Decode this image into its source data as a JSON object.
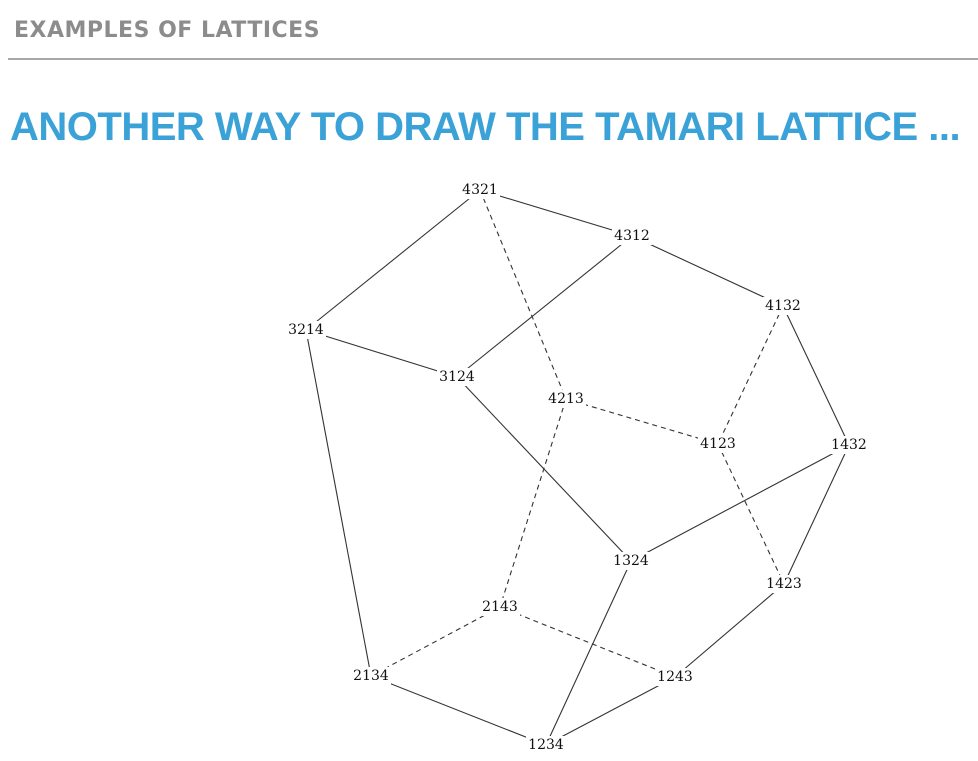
{
  "header": {
    "section_title": "EXAMPLES OF LATTICES"
  },
  "slide": {
    "title": "ANOTHER WAY TO DRAW THE TAMARI LATTICE ...",
    "title_color": "#3ba2d8",
    "header_color": "#8c8c8c",
    "rule_color": "#a8a8a8"
  },
  "diagram": {
    "nodes": [
      "4321",
      "4312",
      "4132",
      "3214",
      "3124",
      "4213",
      "4123",
      "1432",
      "1324",
      "1423",
      "2143",
      "2134",
      "1243",
      "1234"
    ],
    "edges": [
      {
        "from": "4321",
        "to": "4312",
        "style": "solid"
      },
      {
        "from": "4321",
        "to": "3214",
        "style": "solid"
      },
      {
        "from": "4321",
        "to": "4213",
        "style": "dashed"
      },
      {
        "from": "4312",
        "to": "4132",
        "style": "solid"
      },
      {
        "from": "4312",
        "to": "3124",
        "style": "solid"
      },
      {
        "from": "3214",
        "to": "3124",
        "style": "solid"
      },
      {
        "from": "3214",
        "to": "2134",
        "style": "solid"
      },
      {
        "from": "4132",
        "to": "1432",
        "style": "solid"
      },
      {
        "from": "4132",
        "to": "4123",
        "style": "dashed"
      },
      {
        "from": "3124",
        "to": "1324",
        "style": "solid"
      },
      {
        "from": "4213",
        "to": "4123",
        "style": "dashed"
      },
      {
        "from": "4213",
        "to": "2143",
        "style": "dashed"
      },
      {
        "from": "4123",
        "to": "1423",
        "style": "dashed"
      },
      {
        "from": "1432",
        "to": "1324",
        "style": "solid"
      },
      {
        "from": "1432",
        "to": "1423",
        "style": "solid"
      },
      {
        "from": "1324",
        "to": "1234",
        "style": "solid"
      },
      {
        "from": "1423",
        "to": "1243",
        "style": "solid"
      },
      {
        "from": "2143",
        "to": "2134",
        "style": "dashed"
      },
      {
        "from": "2143",
        "to": "1243",
        "style": "dashed"
      },
      {
        "from": "2134",
        "to": "1234",
        "style": "solid"
      },
      {
        "from": "1243",
        "to": "1234",
        "style": "solid"
      }
    ]
  }
}
